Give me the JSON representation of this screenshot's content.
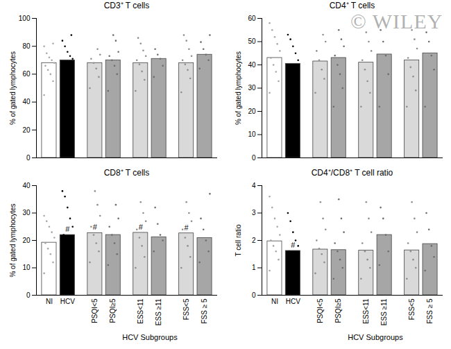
{
  "watermark": "© WILEY",
  "chart_data": [
    {
      "type": "bar",
      "title": "CD3⁺ T cells",
      "ylabel": "% of gated lymphocytes",
      "categories": [
        "NI",
        "HCV",
        "PSQI<5",
        "PSQI≥5",
        "ESS<11",
        "ESS ≥11",
        "FSS<5",
        "FSS ≥ 5"
      ],
      "values": [
        68,
        70,
        68,
        70,
        68,
        71,
        68,
        74
      ],
      "colors": [
        "#ffffff",
        "#000000",
        "#d9d9d9",
        "#a6a6a6",
        "#d9d9d9",
        "#a6a6a6",
        "#d9d9d9",
        "#a6a6a6"
      ],
      "points": [
        [
          45,
          55,
          60,
          63,
          66,
          68,
          70,
          72,
          75,
          80,
          82
        ],
        [
          47,
          58,
          62,
          66,
          69,
          71,
          73,
          76,
          80,
          84,
          88
        ],
        [
          50,
          58,
          64,
          68,
          71,
          74,
          78
        ],
        [
          48,
          60,
          66,
          70,
          73,
          76,
          84,
          88
        ],
        [
          48,
          56,
          62,
          67,
          70,
          73,
          77,
          82,
          86
        ],
        [
          58,
          66,
          71,
          74,
          78
        ],
        [
          47,
          57,
          63,
          67,
          70,
          73,
          78,
          84,
          88
        ],
        [
          64,
          70,
          74,
          78,
          83,
          88
        ]
      ],
      "ylim": [
        0,
        100
      ],
      "yticks": [
        0,
        20,
        40,
        60,
        80,
        100
      ],
      "grid": false,
      "tick_labels": "y"
    },
    {
      "type": "bar",
      "title": "CD4⁺ T cells",
      "ylabel": "% of gated lymphocytes",
      "categories": [
        "NI",
        "HCV",
        "PSQI<5",
        "PSQI≥5",
        "ESS<11",
        "ESS ≥11",
        "FSS<5",
        "FSS ≥ 5"
      ],
      "values": [
        43,
        40.5,
        41.5,
        43,
        41,
        44.5,
        42,
        45
      ],
      "colors": [
        "#ffffff",
        "#000000",
        "#d9d9d9",
        "#a6a6a6",
        "#d9d9d9",
        "#a6a6a6",
        "#d9d9d9",
        "#a6a6a6"
      ],
      "points": [
        [
          28,
          33,
          37,
          40,
          43,
          46,
          49,
          52,
          55,
          58
        ],
        [
          22,
          27,
          31,
          35,
          39,
          42,
          45,
          48,
          51,
          53
        ],
        [
          28,
          34,
          38,
          42,
          46,
          50,
          53
        ],
        [
          22,
          30,
          36,
          40,
          44,
          48,
          51,
          55
        ],
        [
          22,
          28,
          33,
          38,
          42,
          46,
          50,
          54
        ],
        [
          22,
          36,
          44,
          50,
          55
        ],
        [
          22,
          29,
          35,
          39,
          43,
          47,
          51,
          55
        ],
        [
          22,
          38,
          44,
          50,
          54
        ]
      ],
      "ylim": [
        0,
        60
      ],
      "yticks": [
        0,
        10,
        20,
        30,
        40,
        50,
        60
      ],
      "grid": false,
      "tick_labels": "y"
    },
    {
      "type": "bar",
      "title": "CD8⁺ T cells",
      "ylabel": "% of gated lymphocytes",
      "xlabel": "HCV Subgroups",
      "categories": [
        "NI",
        "HCV",
        "PSQI<5",
        "PSQI≥5",
        "ESS<11",
        "ESS ≥11",
        "FSS<5",
        "FSS ≥ 5"
      ],
      "values": [
        19.2,
        22,
        22.7,
        22,
        22.8,
        21.2,
        22.6,
        20.9
      ],
      "colors": [
        "#ffffff",
        "#000000",
        "#d9d9d9",
        "#a6a6a6",
        "#d9d9d9",
        "#a6a6a6",
        "#d9d9d9",
        "#a6a6a6"
      ],
      "points": [
        [
          8,
          12,
          15,
          17,
          19,
          21,
          23,
          25,
          27,
          29
        ],
        [
          10,
          14,
          17,
          20,
          22,
          25,
          28,
          32,
          36,
          38
        ],
        [
          12,
          16,
          19,
          22,
          25,
          29,
          33,
          38
        ],
        [
          11,
          15,
          19,
          22,
          25,
          28,
          33
        ],
        [
          10,
          14,
          18,
          21,
          24,
          27,
          30,
          34
        ],
        [
          16,
          20,
          22,
          26,
          32
        ],
        [
          10,
          14,
          18,
          21,
          24,
          27,
          30,
          34
        ],
        [
          12,
          16,
          20,
          24,
          28,
          37
        ]
      ],
      "annotations": [
        {
          "category": "HCV",
          "text": "#"
        },
        {
          "category": "PSQI<5",
          "text": "#"
        },
        {
          "category": "ESS<11",
          "text": "#"
        },
        {
          "category": "FSS<5",
          "text": "#"
        }
      ],
      "ylim": [
        0,
        40
      ],
      "yticks": [
        0,
        10,
        20,
        30,
        40
      ],
      "grid": false,
      "tick_labels": true
    },
    {
      "type": "bar",
      "title": "CD4⁺/CD8⁺ T cell ratio",
      "ylabel": "T cell ratio",
      "xlabel": "HCV Subgroups",
      "categories": [
        "NI",
        "HCV",
        "PSQI<5",
        "PSQI≥5",
        "ESS<11",
        "ESS ≥11",
        "FSS<5",
        "FSS ≥ 5"
      ],
      "values": [
        1.97,
        1.62,
        1.67,
        1.65,
        1.63,
        2.2,
        1.64,
        1.87
      ],
      "colors": [
        "#ffffff",
        "#000000",
        "#d9d9d9",
        "#a6a6a6",
        "#d9d9d9",
        "#a6a6a6",
        "#d9d9d9",
        "#a6a6a6"
      ],
      "points": [
        [
          0.9,
          1.3,
          1.6,
          1.8,
          2.0,
          2.2,
          2.5,
          2.8,
          3.2,
          3.6
        ],
        [
          0.4,
          0.8,
          1.1,
          1.4,
          1.6,
          1.8,
          2.0,
          2.3,
          2.7,
          3.0
        ],
        [
          0.8,
          1.2,
          1.5,
          1.7,
          2.0,
          2.4,
          2.8,
          3.4
        ],
        [
          0.6,
          1.0,
          1.3,
          1.6,
          1.9,
          2.3,
          2.8,
          3.5
        ],
        [
          0.6,
          1.0,
          1.3,
          1.6,
          1.9,
          2.3,
          2.8,
          3.4
        ],
        [
          1.1,
          1.6,
          2.2,
          2.8,
          3.2
        ],
        [
          0.6,
          1.0,
          1.3,
          1.6,
          1.9,
          2.3,
          2.8,
          3.4
        ],
        [
          0.9,
          1.4,
          1.8,
          2.4,
          3.0
        ]
      ],
      "annotations": [
        {
          "category": "HCV",
          "text": "#"
        }
      ],
      "ylim": [
        0,
        4
      ],
      "yticks": [
        0,
        1,
        2,
        3,
        4
      ],
      "grid": false,
      "tick_labels": true
    }
  ]
}
